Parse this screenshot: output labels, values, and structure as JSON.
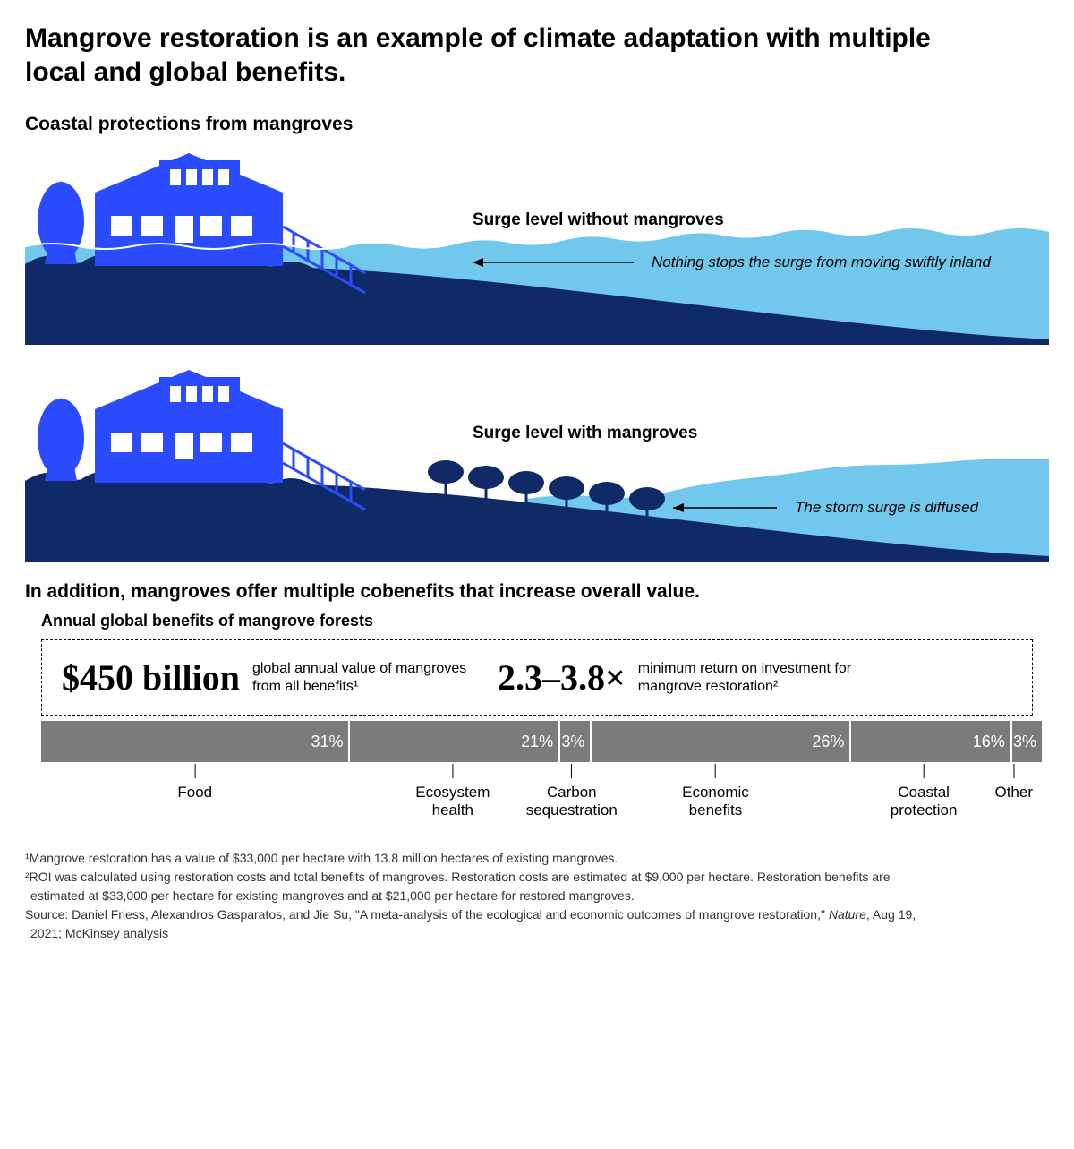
{
  "title": "Mangrove restoration is an example of climate adaptation with multiple local and global benefits.",
  "coastal": {
    "heading": "Coastal protections from mangroves",
    "without": {
      "label": "Surge level without mangroves",
      "caption": "Nothing stops the surge from moving swiftly inland"
    },
    "with": {
      "label": "Surge level with mangroves",
      "caption": "The storm surge is diffused"
    }
  },
  "cobenefits": {
    "heading": "In addition, mangroves offer multiple cobenefits that increase overall value.",
    "subtitle": "Annual global benefits of mangrove forests",
    "stats": {
      "value": "$450 billion",
      "value_desc": "global annual value of mangroves from all benefits¹",
      "roi": "2.3–3.8×",
      "roi_desc": "minimum return on investment for mangrove restoration²"
    },
    "chart": {
      "type": "stacked-bar-horizontal",
      "segments": [
        {
          "label": "Food",
          "pct": 31,
          "display": "31%"
        },
        {
          "label": "Ecosystem health",
          "pct": 21,
          "display": "21%"
        },
        {
          "label": "Carbon sequestration",
          "pct": 3,
          "display": "3%"
        },
        {
          "label": "Economic benefits",
          "pct": 26,
          "display": "26%"
        },
        {
          "label": "Coastal protection",
          "pct": 16,
          "display": "16%"
        },
        {
          "label": "Other",
          "pct": 3,
          "display": "3%"
        }
      ],
      "bar_color": "#7b7b7b",
      "bar_text_color": "#ffffff",
      "label_fontsize": 17
    }
  },
  "footnotes": {
    "n1": "¹Mangrove restoration has a value of $33,000 per hectare with 13.8 million hectares of existing mangroves.",
    "n2a": "²ROI was calculated using restoration costs and total benefits of mangroves. Restoration costs are estimated at $9,000 per hectare. Restoration benefits are",
    "n2b": "estimated at $33,000 per hectare for existing mangroves and at $21,000 per hectare for restored mangroves.",
    "src_a": "Source: Daniel Friess, Alexandros Gasparatos, and Jie Su, \"A meta-analysis of the ecological and economic outcomes of mangrove restoration,\" ",
    "src_em": "Nature",
    "src_b": ", Aug 19,",
    "src_c": "2021; McKinsey analysis"
  },
  "colors": {
    "house": "#2b4bff",
    "land": "#0f2a66",
    "water": "#71c7ec",
    "white": "#ffffff",
    "black": "#000000"
  }
}
